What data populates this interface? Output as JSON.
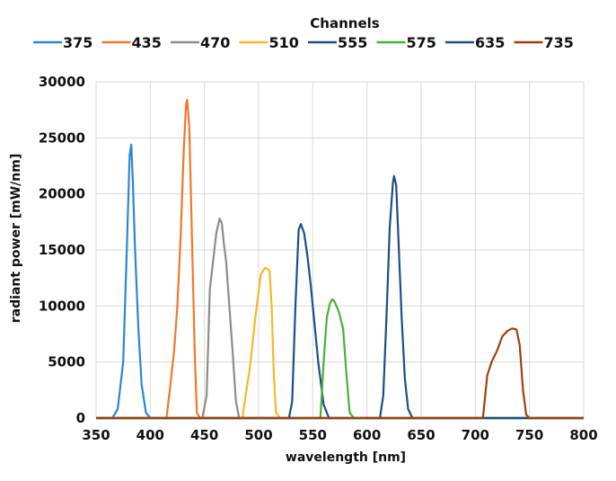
{
  "chart_data": {
    "type": "line",
    "legend_title": "Channels",
    "legend_position": "top",
    "xlabel": "wavelength [nm]",
    "ylabel": "radiant power [mW/nm]",
    "xlim": [
      350,
      800
    ],
    "ylim": [
      0,
      30000
    ],
    "x_ticks": [
      "350",
      "400",
      "450",
      "500",
      "550",
      "600",
      "650",
      "700",
      "750",
      "800"
    ],
    "y_ticks": [
      "0",
      "5000",
      "10000",
      "15000",
      "20000",
      "25000",
      "30000"
    ],
    "grid": true,
    "series": [
      {
        "name": "375",
        "color": "#2e86d1",
        "points": [
          [
            350,
            0
          ],
          [
            365,
            0
          ],
          [
            370,
            800
          ],
          [
            375,
            5000
          ],
          [
            378,
            14000
          ],
          [
            381,
            23500
          ],
          [
            382.5,
            24400
          ],
          [
            384,
            21000
          ],
          [
            386,
            15000
          ],
          [
            389,
            8000
          ],
          [
            392,
            3000
          ],
          [
            396,
            500
          ],
          [
            400,
            0
          ],
          [
            800,
            0
          ]
        ]
      },
      {
        "name": "435",
        "color": "#f0782a",
        "points": [
          [
            350,
            0
          ],
          [
            415,
            0
          ],
          [
            418,
            2500
          ],
          [
            422,
            6000
          ],
          [
            425,
            10000
          ],
          [
            428,
            16000
          ],
          [
            431,
            24000
          ],
          [
            433,
            28000
          ],
          [
            434,
            28400
          ],
          [
            436,
            26000
          ],
          [
            438,
            18000
          ],
          [
            441,
            6000
          ],
          [
            443,
            500
          ],
          [
            446,
            0
          ],
          [
            800,
            0
          ]
        ]
      },
      {
        "name": "470",
        "color": "#8c8c8c",
        "points": [
          [
            350,
            0
          ],
          [
            448,
            0
          ],
          [
            452,
            2000
          ],
          [
            455,
            11500
          ],
          [
            458,
            14000
          ],
          [
            461,
            16500
          ],
          [
            464,
            17800
          ],
          [
            466,
            17400
          ],
          [
            468,
            15500
          ],
          [
            470,
            14000
          ],
          [
            473,
            10000
          ],
          [
            476,
            6000
          ],
          [
            479,
            1500
          ],
          [
            482,
            0
          ],
          [
            800,
            0
          ]
        ]
      },
      {
        "name": "510",
        "color": "#f5b829",
        "points": [
          [
            350,
            0
          ],
          [
            485,
            0
          ],
          [
            488,
            2000
          ],
          [
            492,
            4500
          ],
          [
            497,
            9000
          ],
          [
            502,
            12800
          ],
          [
            506,
            13400
          ],
          [
            510,
            13200
          ],
          [
            512,
            10000
          ],
          [
            514,
            4000
          ],
          [
            516,
            500
          ],
          [
            520,
            0
          ],
          [
            800,
            0
          ]
        ]
      },
      {
        "name": "555",
        "color": "#1a4f8c",
        "points": [
          [
            350,
            0
          ],
          [
            528,
            0
          ],
          [
            531,
            1500
          ],
          [
            534,
            10000
          ],
          [
            537,
            16800
          ],
          [
            539,
            17300
          ],
          [
            542,
            16500
          ],
          [
            545,
            14500
          ],
          [
            548,
            12000
          ],
          [
            551,
            9000
          ],
          [
            555,
            5000
          ],
          [
            560,
            1200
          ],
          [
            565,
            0
          ],
          [
            800,
            0
          ]
        ]
      },
      {
        "name": "575",
        "color": "#4caf3a",
        "points": [
          [
            350,
            0
          ],
          [
            557,
            0
          ],
          [
            560,
            5000
          ],
          [
            563,
            9000
          ],
          [
            566,
            10300
          ],
          [
            568,
            10600
          ],
          [
            570,
            10400
          ],
          [
            574,
            9500
          ],
          [
            578,
            8000
          ],
          [
            581,
            4000
          ],
          [
            584,
            500
          ],
          [
            588,
            0
          ],
          [
            800,
            0
          ]
        ]
      },
      {
        "name": "635",
        "color": "#1f4e80",
        "points": [
          [
            350,
            0
          ],
          [
            612,
            0
          ],
          [
            615,
            2000
          ],
          [
            618,
            9000
          ],
          [
            621,
            17000
          ],
          [
            624,
            21000
          ],
          [
            625,
            21600
          ],
          [
            627,
            20800
          ],
          [
            629,
            16000
          ],
          [
            632,
            9000
          ],
          [
            635,
            3500
          ],
          [
            638,
            800
          ],
          [
            642,
            0
          ],
          [
            800,
            0
          ]
        ]
      },
      {
        "name": "735",
        "color": "#a0400e",
        "points": [
          [
            350,
            0
          ],
          [
            707,
            0
          ],
          [
            711,
            3800
          ],
          [
            715,
            5000
          ],
          [
            720,
            6000
          ],
          [
            725,
            7300
          ],
          [
            730,
            7800
          ],
          [
            734,
            8000
          ],
          [
            738,
            7900
          ],
          [
            741,
            6500
          ],
          [
            744,
            2500
          ],
          [
            747,
            300
          ],
          [
            750,
            0
          ],
          [
            800,
            0
          ]
        ]
      }
    ]
  }
}
